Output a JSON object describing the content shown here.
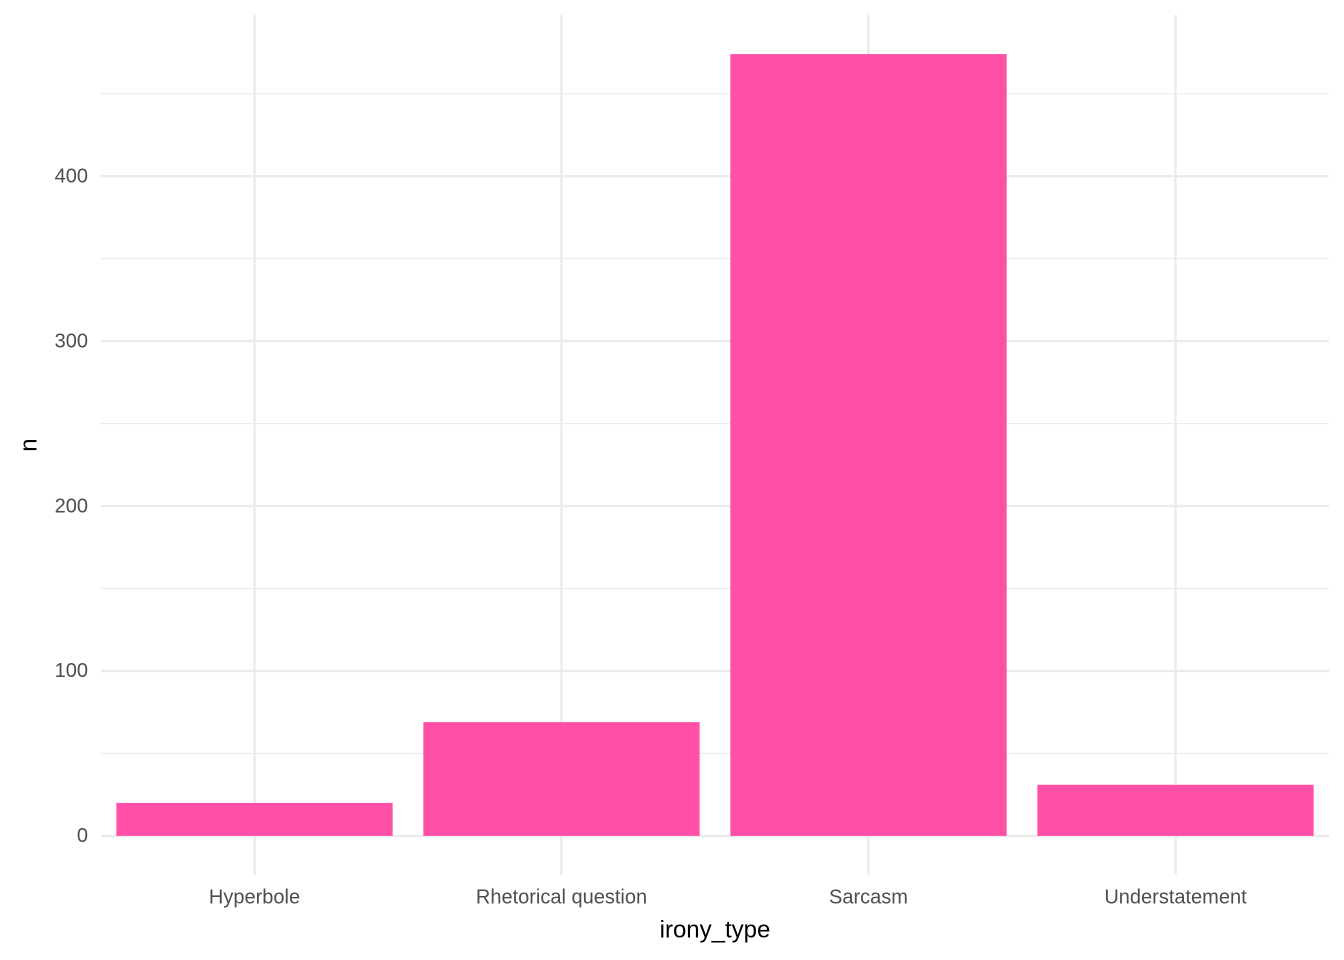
{
  "chart_data": {
    "type": "bar",
    "x_label": "irony_type",
    "y_label": "n",
    "categories": [
      "Hyperbole",
      "Rhetorical question",
      "Sarcasm",
      "Understatement"
    ],
    "values": [
      20,
      69,
      474,
      31
    ],
    "color": "#ff4fa7",
    "ylim": [
      -23.7,
      497.7
    ],
    "yticks": [
      0,
      100,
      200,
      300,
      400
    ],
    "minor_yticks": [
      50,
      150,
      250,
      350,
      450
    ],
    "grid": true
  }
}
